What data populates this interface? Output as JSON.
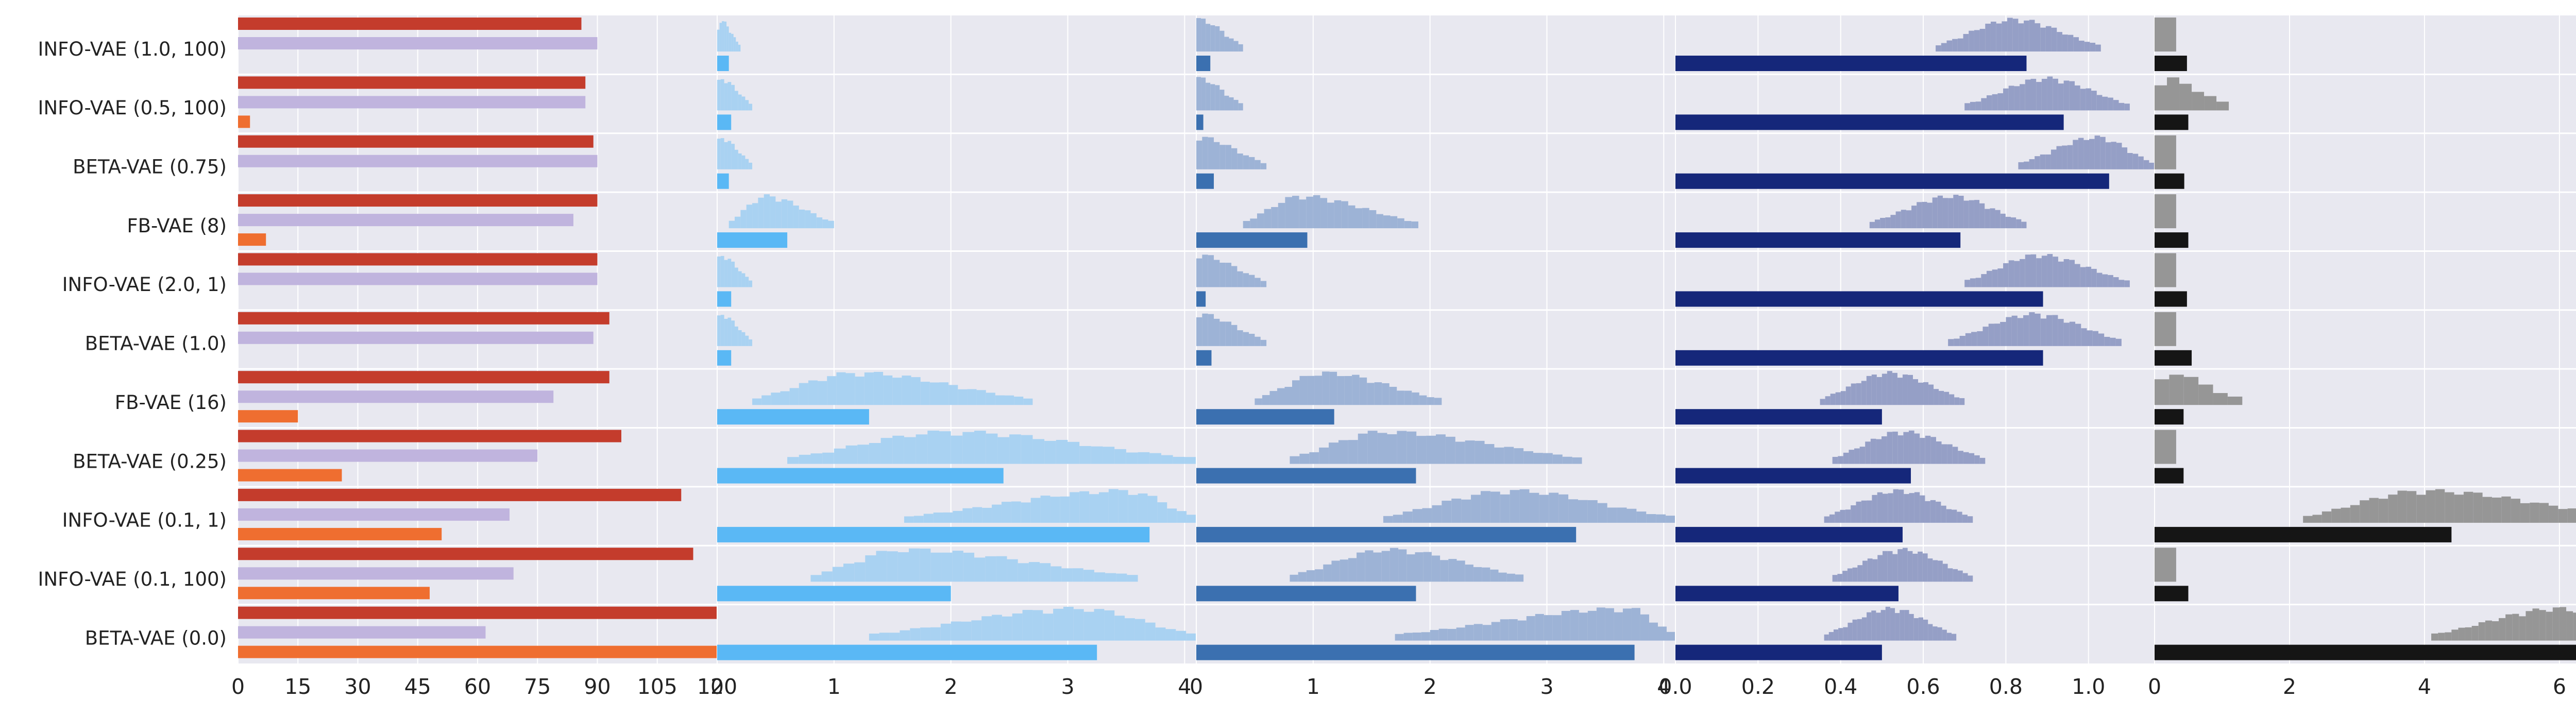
{
  "chart_data": {
    "type": "bar",
    "layout": "five horizontal bar panels sharing one model axis, with histograms overlaid",
    "grid": true,
    "models": [
      "INFO-VAE (1.0, 100)",
      "INFO-VAE (0.5, 100)",
      "BETA-VAE (0.75)",
      "FB-VAE (8)",
      "INFO-VAE (2.0, 1)",
      "BETA-VAE (1.0)",
      "FB-VAE (16)",
      "BETA-VAE (0.25)",
      "INFO-VAE (0.1, 1)",
      "INFO-VAE (0.1, 100)",
      "BETA-VAE (0.0)"
    ],
    "panels": [
      {
        "id": "panel1",
        "xlim": [
          0,
          120
        ],
        "ticks": [
          0,
          15,
          30,
          45,
          60,
          75,
          90,
          105,
          120
        ],
        "tick_labels": [
          "0",
          "15",
          "30",
          "45",
          "60",
          "75",
          "90",
          "105",
          "120"
        ],
        "series": [
          {
            "color": "#c43c2c",
            "values": [
              86,
              87,
              89,
              90,
              90,
              93,
              93,
              96,
              111,
              114,
              121
            ]
          },
          {
            "color": "#c0b4de",
            "values": [
              90,
              87,
              90,
              84,
              90,
              89,
              79,
              75,
              68,
              69,
              62
            ]
          },
          {
            "color": "#ef6e30",
            "values": [
              0,
              3,
              0,
              7,
              0,
              0,
              15,
              26,
              51,
              48,
              121
            ]
          }
        ]
      },
      {
        "id": "panel2",
        "xlim": [
          0,
          4.1
        ],
        "ticks": [
          0,
          1,
          2,
          3,
          4
        ],
        "tick_labels": [
          "0",
          "1",
          "2",
          "3",
          "4"
        ],
        "bar_color": "#5ab8f5",
        "hist_color": "#a9d2f2",
        "values": [
          0.1,
          0.12,
          0.1,
          0.6,
          0.12,
          0.12,
          1.3,
          2.45,
          3.7,
          2.0,
          3.25
        ],
        "hists": [
          {
            "start": 0,
            "end": 0.2,
            "bins": 10,
            "peak": 0.02
          },
          {
            "start": 0,
            "end": 0.3,
            "bins": 10,
            "peak": 0.02
          },
          {
            "start": 0,
            "end": 0.3,
            "bins": 10,
            "peak": 0.02
          },
          {
            "start": 0.1,
            "end": 1.0,
            "bins": 18,
            "peak": 0.42
          },
          {
            "start": 0,
            "end": 0.3,
            "bins": 10,
            "peak": 0.02
          },
          {
            "start": 0,
            "end": 0.3,
            "bins": 10,
            "peak": 0.02
          },
          {
            "start": 0.3,
            "end": 2.7,
            "bins": 30,
            "peak": 1.2
          },
          {
            "start": 0.6,
            "end": 4.1,
            "bins": 35,
            "peak": 2.0
          },
          {
            "start": 1.6,
            "end": 4.1,
            "bins": 30,
            "peak": 3.5
          },
          {
            "start": 0.8,
            "end": 3.6,
            "bins": 30,
            "peak": 1.6
          },
          {
            "start": 1.3,
            "end": 4.1,
            "bins": 32,
            "peak": 3.1
          }
        ]
      },
      {
        "id": "panel3",
        "xlim": [
          0,
          4.1
        ],
        "ticks": [
          0,
          1,
          2,
          3,
          4
        ],
        "tick_labels": [
          "0",
          "1",
          "2",
          "3",
          "4"
        ],
        "bar_color": "#3b70b0",
        "hist_color": "#9db3d6",
        "values": [
          0.12,
          0.06,
          0.15,
          0.95,
          0.08,
          0.13,
          1.18,
          1.88,
          3.25,
          1.88,
          3.75
        ],
        "hists": [
          {
            "start": 0,
            "end": 0.4,
            "bins": 10,
            "peak": 0.02
          },
          {
            "start": 0,
            "end": 0.4,
            "bins": 10,
            "peak": 0.02
          },
          {
            "start": 0,
            "end": 0.6,
            "bins": 12,
            "peak": 0.02
          },
          {
            "start": 0.4,
            "end": 1.9,
            "bins": 25,
            "peak": 0.9
          },
          {
            "start": 0,
            "end": 0.6,
            "bins": 12,
            "peak": 0.02
          },
          {
            "start": 0,
            "end": 0.6,
            "bins": 12,
            "peak": 0.02
          },
          {
            "start": 0.5,
            "end": 2.1,
            "bins": 25,
            "peak": 1.1
          },
          {
            "start": 0.8,
            "end": 3.3,
            "bins": 30,
            "peak": 1.6
          },
          {
            "start": 1.6,
            "end": 4.1,
            "bins": 30,
            "peak": 2.7
          },
          {
            "start": 0.8,
            "end": 2.8,
            "bins": 28,
            "peak": 1.65
          },
          {
            "start": 1.7,
            "end": 4.1,
            "bins": 32,
            "peak": 3.7
          }
        ]
      },
      {
        "id": "panel4",
        "xlim": [
          0,
          1.16
        ],
        "ticks": [
          0,
          0.2,
          0.4,
          0.6,
          0.8,
          1.0
        ],
        "tick_labels": [
          "0.0",
          "0.2",
          "0.4",
          "0.6",
          "0.8",
          "1.0"
        ],
        "bar_color": "#15277a",
        "hist_color": "#959fc6",
        "values": [
          0.85,
          0.94,
          1.05,
          0.69,
          0.89,
          0.89,
          0.5,
          0.57,
          0.55,
          0.54,
          0.5
        ],
        "hists": [
          {
            "start": 0.63,
            "end": 1.03,
            "bins": 30,
            "peak": 0.82
          },
          {
            "start": 0.7,
            "end": 1.1,
            "bins": 30,
            "peak": 0.9
          },
          {
            "start": 0.83,
            "end": 1.16,
            "bins": 25,
            "peak": 1.02
          },
          {
            "start": 0.47,
            "end": 0.85,
            "bins": 30,
            "peak": 0.67
          },
          {
            "start": 0.7,
            "end": 1.1,
            "bins": 30,
            "peak": 0.88
          },
          {
            "start": 0.66,
            "end": 1.08,
            "bins": 30,
            "peak": 0.87
          },
          {
            "start": 0.35,
            "end": 0.7,
            "bins": 28,
            "peak": 0.52
          },
          {
            "start": 0.38,
            "end": 0.75,
            "bins": 28,
            "peak": 0.55
          },
          {
            "start": 0.36,
            "end": 0.72,
            "bins": 28,
            "peak": 0.54
          },
          {
            "start": 0.38,
            "end": 0.72,
            "bins": 28,
            "peak": 0.55
          },
          {
            "start": 0.36,
            "end": 0.68,
            "bins": 28,
            "peak": 0.52
          }
        ]
      },
      {
        "id": "panel5",
        "xlim": [
          0,
          7.1
        ],
        "ticks": [
          0,
          2,
          4,
          6
        ],
        "tick_labels": [
          "0",
          "2",
          "4",
          "6"
        ],
        "bar_color": "#151515",
        "hist_color": "#969696",
        "values": [
          0.48,
          0.5,
          0.44,
          0.5,
          0.48,
          0.55,
          0.43,
          0.43,
          4.4,
          0.5,
          6.5
        ],
        "hists": [
          {
            "start": 0,
            "end": 0.32,
            "bins": 1,
            "peak": 0.16
          },
          {
            "start": 0,
            "end": 1.1,
            "bins": 6,
            "peak": 0.15
          },
          {
            "start": 0,
            "end": 0.32,
            "bins": 1,
            "peak": 0.16
          },
          {
            "start": 0,
            "end": 0.32,
            "bins": 1,
            "peak": 0.16
          },
          {
            "start": 0,
            "end": 0.32,
            "bins": 1,
            "peak": 0.16
          },
          {
            "start": 0,
            "end": 0.32,
            "bins": 1,
            "peak": 0.16
          },
          {
            "start": 0,
            "end": 1.3,
            "bins": 6,
            "peak": 0.15
          },
          {
            "start": 0,
            "end": 0.32,
            "bins": 1,
            "peak": 0.16
          },
          {
            "start": 2.2,
            "end": 7.1,
            "bins": 35,
            "peak": 4.0
          },
          {
            "start": 0,
            "end": 0.32,
            "bins": 1,
            "peak": 0.16
          },
          {
            "start": 4.1,
            "end": 7.1,
            "bins": 30,
            "peak": 6.0
          }
        ]
      }
    ]
  }
}
